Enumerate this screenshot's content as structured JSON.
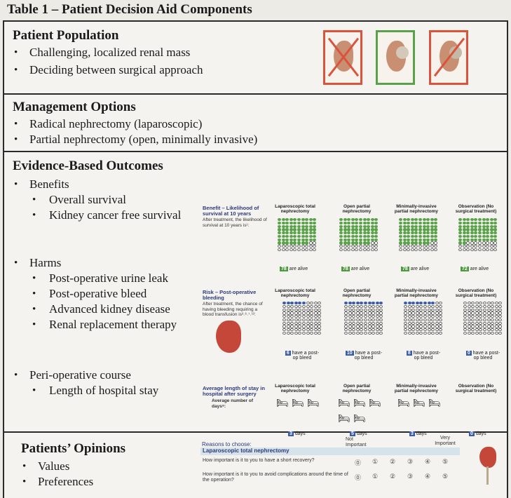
{
  "title": "Table 1 – Patient Decision Aid Components",
  "population": {
    "heading": "Patient Population",
    "bullets": [
      "Challenging, localized renal mass",
      "Deciding between surgical approach"
    ]
  },
  "management": {
    "heading": "Management Options",
    "bullets": [
      "Radical nephrectomy (laparoscopic)",
      "Partial nephrectomy (open, minimally invasive)"
    ]
  },
  "outcomes": {
    "heading": "Evidence-Based Outcomes",
    "benefits": "Benefits",
    "benefit_items": [
      "Overall survival",
      "Kidney cancer free survival"
    ],
    "harms": "Harms",
    "harm_items": [
      "Post-operative urine leak",
      "Post-operative bleed",
      "Advanced kidney disease",
      "Renal replacement therapy"
    ],
    "periop": "Peri-operative course",
    "periop_items": [
      "Length of hospital stay"
    ]
  },
  "columns": [
    "Laparoscopic total nephrectomy",
    "Open partial nephrectomy",
    "Minimally-invasive partial nephrectomy",
    "Observation (No surgical treatment)"
  ],
  "benefit_panel": {
    "title": "Benefit – Likelihood of survival at 10 years",
    "text": "After treatment, the likelihood of survival at 10 years is¹:",
    "values": [
      78,
      78,
      78,
      72
    ],
    "suffix": "are alive"
  },
  "risk_panel": {
    "title": "Risk – Post-operative bleeding",
    "text": "After treatment, the chance of having bleeding requiring a blood transfusion is³˒⁶˒⁷˒¹²:",
    "values": [
      6,
      10,
      8,
      0
    ],
    "suffix": "have a post-op bleed"
  },
  "stay_panel": {
    "title": "Average length of stay in hospital after surgery",
    "text": "Average number of days⁸:",
    "values": [
      3,
      5,
      3,
      0
    ],
    "suffix": "days"
  },
  "opinions": {
    "heading": "Patients’ Opinions",
    "bullets": [
      "Values",
      "Preferences"
    ],
    "reasons": "Reasons to choose:",
    "option": "Laparoscopic total nephrectomy",
    "not_important": "Not Important",
    "very_important": "Very Important",
    "questions": [
      "How important is it to you to have a short recovery?",
      "How important is it to you to avoid complications around the time of the operation?"
    ],
    "scale": [
      "⓪",
      "①",
      "②",
      "③",
      "④",
      "⑤"
    ]
  },
  "colors": {
    "green": "#5aa24a",
    "blue": "#3a5cab",
    "red": "#d9533d"
  }
}
